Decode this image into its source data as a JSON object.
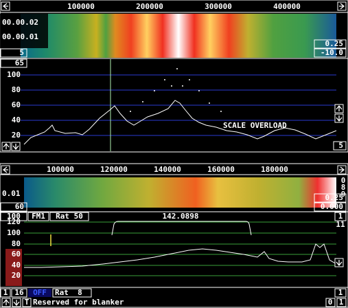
{
  "top_panel": {
    "freq_axis": [
      "100000",
      "200000",
      "300000",
      "400000"
    ],
    "time_labels": [
      "00.00.02",
      "00.00.01"
    ],
    "waterfall_avg": "5",
    "waterfall_gain": "0.25",
    "waterfall_zero": "-10.0",
    "spectrum_top": "65",
    "y_axis": [
      "100",
      "80",
      "60",
      "40",
      "20"
    ],
    "overload": "SCALE OVERLOAD",
    "spectrum_avg": "5"
  },
  "bottom_panel": {
    "freq_axis": [
      "100000",
      "120000",
      "140000",
      "160000",
      "180000"
    ],
    "right_digits": [
      "0",
      "8",
      "9"
    ],
    "time_label": "0.01",
    "waterfall_gain": "0.25",
    "waterfall_avg": "60",
    "waterfall_zero": "0.000",
    "controls": [
      "100",
      "FM1",
      "Rat 50"
    ],
    "frequency": "142.0898",
    "right_controls": [
      "1",
      "11"
    ],
    "y_axis": [
      "120",
      "100",
      "80",
      "60",
      "40",
      "20"
    ],
    "status_row": [
      "1",
      "16",
      "OFF",
      "Rat  8"
    ],
    "status_right": "1",
    "t_button": "T",
    "blanker": "Reserved for blanker",
    "bottom_right": [
      "0",
      "1"
    ]
  }
}
